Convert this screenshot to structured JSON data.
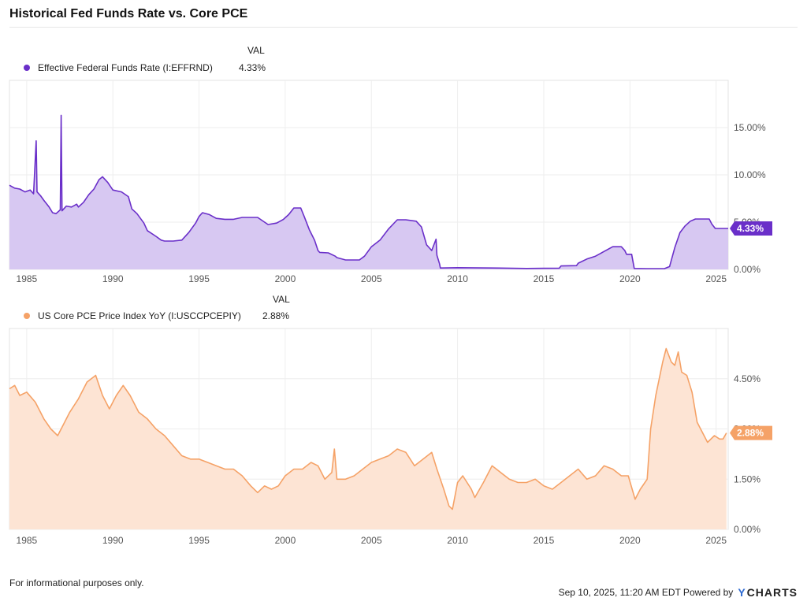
{
  "title": "Historical Fed Funds Rate vs. Core PCE",
  "val_header": "VAL",
  "footer": {
    "note": "For informational purposes only.",
    "timestamp": "Sep 10, 2025, 11:20 AM EDT Powered by",
    "brand": "CHARTS",
    "brand_mark": "Y"
  },
  "colors": {
    "fed": "#6a2fc9",
    "fed_fill": "#d7c8f2",
    "pce": "#f5a267",
    "pce_fill": "#fde4d4",
    "grid": "#eeeeee"
  },
  "chart_data": [
    {
      "type": "area",
      "series": [
        {
          "name": "Effective Federal Funds Rate (I:EFFRND)",
          "value_label": "4.33%",
          "points": [
            [
              1984.0,
              8.9
            ],
            [
              1984.3,
              8.6
            ],
            [
              1984.6,
              8.5
            ],
            [
              1984.9,
              8.2
            ],
            [
              1985.2,
              8.4
            ],
            [
              1985.4,
              8.0
            ],
            [
              1985.55,
              13.6
            ],
            [
              1985.6,
              8.2
            ],
            [
              1985.8,
              7.8
            ],
            [
              1986.0,
              7.3
            ],
            [
              1986.3,
              6.6
            ],
            [
              1986.5,
              6.0
            ],
            [
              1986.7,
              5.9
            ],
            [
              1986.95,
              6.3
            ],
            [
              1987.0,
              16.3
            ],
            [
              1987.05,
              6.2
            ],
            [
              1987.3,
              6.7
            ],
            [
              1987.6,
              6.6
            ],
            [
              1987.9,
              6.9
            ],
            [
              1988.0,
              6.6
            ],
            [
              1988.3,
              7.1
            ],
            [
              1988.6,
              7.9
            ],
            [
              1988.9,
              8.5
            ],
            [
              1989.2,
              9.5
            ],
            [
              1989.4,
              9.8
            ],
            [
              1989.7,
              9.2
            ],
            [
              1990.0,
              8.4
            ],
            [
              1990.5,
              8.2
            ],
            [
              1990.9,
              7.7
            ],
            [
              1991.1,
              6.4
            ],
            [
              1991.4,
              5.9
            ],
            [
              1991.8,
              4.9
            ],
            [
              1992.0,
              4.1
            ],
            [
              1992.5,
              3.5
            ],
            [
              1992.8,
              3.1
            ],
            [
              1993.0,
              3.0
            ],
            [
              1993.5,
              3.0
            ],
            [
              1994.0,
              3.1
            ],
            [
              1994.4,
              3.9
            ],
            [
              1994.8,
              4.9
            ],
            [
              1995.0,
              5.6
            ],
            [
              1995.2,
              6.0
            ],
            [
              1995.6,
              5.8
            ],
            [
              1996.0,
              5.4
            ],
            [
              1996.5,
              5.3
            ],
            [
              1997.0,
              5.3
            ],
            [
              1997.5,
              5.5
            ],
            [
              1998.0,
              5.5
            ],
            [
              1998.4,
              5.5
            ],
            [
              1998.8,
              5.0
            ],
            [
              1999.0,
              4.75
            ],
            [
              1999.5,
              4.9
            ],
            [
              1999.9,
              5.3
            ],
            [
              2000.2,
              5.8
            ],
            [
              2000.5,
              6.5
            ],
            [
              2000.9,
              6.5
            ],
            [
              2001.1,
              5.6
            ],
            [
              2001.4,
              4.2
            ],
            [
              2001.7,
              3.1
            ],
            [
              2001.9,
              2.0
            ],
            [
              2002.0,
              1.8
            ],
            [
              2002.5,
              1.75
            ],
            [
              2002.9,
              1.4
            ],
            [
              2003.0,
              1.25
            ],
            [
              2003.5,
              1.0
            ],
            [
              2004.0,
              1.0
            ],
            [
              2004.3,
              1.0
            ],
            [
              2004.6,
              1.4
            ],
            [
              2005.0,
              2.4
            ],
            [
              2005.5,
              3.1
            ],
            [
              2006.0,
              4.3
            ],
            [
              2006.5,
              5.25
            ],
            [
              2007.0,
              5.25
            ],
            [
              2007.6,
              5.1
            ],
            [
              2007.9,
              4.5
            ],
            [
              2008.2,
              2.6
            ],
            [
              2008.5,
              2.0
            ],
            [
              2008.75,
              3.2
            ],
            [
              2008.8,
              1.5
            ],
            [
              2008.95,
              0.6
            ],
            [
              2009.0,
              0.15
            ],
            [
              2010.0,
              0.18
            ],
            [
              2012.0,
              0.15
            ],
            [
              2014.0,
              0.1
            ],
            [
              2015.0,
              0.12
            ],
            [
              2015.9,
              0.13
            ],
            [
              2016.0,
              0.37
            ],
            [
              2016.9,
              0.4
            ],
            [
              2017.0,
              0.66
            ],
            [
              2017.5,
              1.1
            ],
            [
              2018.0,
              1.4
            ],
            [
              2018.5,
              1.9
            ],
            [
              2019.0,
              2.4
            ],
            [
              2019.5,
              2.4
            ],
            [
              2019.7,
              2.0
            ],
            [
              2019.8,
              1.6
            ],
            [
              2020.1,
              1.6
            ],
            [
              2020.25,
              0.1
            ],
            [
              2021.0,
              0.08
            ],
            [
              2022.0,
              0.08
            ],
            [
              2022.3,
              0.3
            ],
            [
              2022.6,
              2.3
            ],
            [
              2022.9,
              3.9
            ],
            [
              2023.2,
              4.6
            ],
            [
              2023.5,
              5.1
            ],
            [
              2023.8,
              5.33
            ],
            [
              2024.6,
              5.33
            ],
            [
              2024.75,
              4.8
            ],
            [
              2024.95,
              4.33
            ],
            [
              2025.7,
              4.33
            ]
          ]
        }
      ],
      "y_ticks": [
        "0.00%",
        "5.00%",
        "10.00%",
        "15.00%"
      ],
      "x_ticks": [
        "1985",
        "1990",
        "1995",
        "2000",
        "2005",
        "2010",
        "2015",
        "2020",
        "2025"
      ],
      "xlim": [
        1984.0,
        2025.7
      ],
      "ylim": [
        0,
        20
      ],
      "grid": true,
      "legend": "top-left"
    },
    {
      "type": "area",
      "series": [
        {
          "name": "US Core PCE Price Index YoY (I:USCCPCEPIY)",
          "value_label": "2.88%",
          "points": [
            [
              1984.0,
              4.2
            ],
            [
              1984.3,
              4.3
            ],
            [
              1984.6,
              4.0
            ],
            [
              1985.0,
              4.1
            ],
            [
              1985.5,
              3.8
            ],
            [
              1986.0,
              3.3
            ],
            [
              1986.4,
              3.0
            ],
            [
              1986.8,
              2.8
            ],
            [
              1987.0,
              3.0
            ],
            [
              1987.5,
              3.5
            ],
            [
              1988.0,
              3.9
            ],
            [
              1988.5,
              4.4
            ],
            [
              1989.0,
              4.6
            ],
            [
              1989.4,
              4.0
            ],
            [
              1989.8,
              3.6
            ],
            [
              1990.2,
              4.0
            ],
            [
              1990.6,
              4.3
            ],
            [
              1991.0,
              4.0
            ],
            [
              1991.5,
              3.5
            ],
            [
              1992.0,
              3.3
            ],
            [
              1992.5,
              3.0
            ],
            [
              1993.0,
              2.8
            ],
            [
              1993.5,
              2.5
            ],
            [
              1994.0,
              2.2
            ],
            [
              1994.5,
              2.1
            ],
            [
              1995.0,
              2.1
            ],
            [
              1995.5,
              2.0
            ],
            [
              1996.0,
              1.9
            ],
            [
              1996.5,
              1.8
            ],
            [
              1997.0,
              1.8
            ],
            [
              1997.5,
              1.6
            ],
            [
              1998.0,
              1.3
            ],
            [
              1998.4,
              1.1
            ],
            [
              1998.8,
              1.3
            ],
            [
              1999.2,
              1.2
            ],
            [
              1999.6,
              1.3
            ],
            [
              2000.0,
              1.6
            ],
            [
              2000.5,
              1.8
            ],
            [
              2001.0,
              1.8
            ],
            [
              2001.5,
              2.0
            ],
            [
              2001.9,
              1.9
            ],
            [
              2002.3,
              1.5
            ],
            [
              2002.7,
              1.7
            ],
            [
              2002.85,
              2.4
            ],
            [
              2003.0,
              1.5
            ],
            [
              2003.5,
              1.5
            ],
            [
              2004.0,
              1.6
            ],
            [
              2004.5,
              1.8
            ],
            [
              2005.0,
              2.0
            ],
            [
              2005.5,
              2.1
            ],
            [
              2006.0,
              2.2
            ],
            [
              2006.5,
              2.4
            ],
            [
              2007.0,
              2.3
            ],
            [
              2007.5,
              1.9
            ],
            [
              2008.0,
              2.1
            ],
            [
              2008.5,
              2.3
            ],
            [
              2008.8,
              1.8
            ],
            [
              2009.2,
              1.2
            ],
            [
              2009.5,
              0.7
            ],
            [
              2009.7,
              0.6
            ],
            [
              2010.0,
              1.4
            ],
            [
              2010.3,
              1.6
            ],
            [
              2010.8,
              1.2
            ],
            [
              2011.0,
              0.95
            ],
            [
              2011.5,
              1.4
            ],
            [
              2012.0,
              1.9
            ],
            [
              2012.5,
              1.7
            ],
            [
              2013.0,
              1.5
            ],
            [
              2013.5,
              1.4
            ],
            [
              2014.0,
              1.4
            ],
            [
              2014.5,
              1.5
            ],
            [
              2015.0,
              1.3
            ],
            [
              2015.5,
              1.2
            ],
            [
              2016.0,
              1.4
            ],
            [
              2016.5,
              1.6
            ],
            [
              2017.0,
              1.8
            ],
            [
              2017.5,
              1.5
            ],
            [
              2018.0,
              1.6
            ],
            [
              2018.5,
              1.9
            ],
            [
              2019.0,
              1.8
            ],
            [
              2019.5,
              1.6
            ],
            [
              2019.9,
              1.6
            ],
            [
              2020.3,
              0.9
            ],
            [
              2020.6,
              1.2
            ],
            [
              2021.0,
              1.5
            ],
            [
              2021.2,
              3.0
            ],
            [
              2021.5,
              4.0
            ],
            [
              2021.9,
              5.0
            ],
            [
              2022.1,
              5.4
            ],
            [
              2022.4,
              5.0
            ],
            [
              2022.6,
              4.9
            ],
            [
              2022.8,
              5.3
            ],
            [
              2023.0,
              4.7
            ],
            [
              2023.3,
              4.6
            ],
            [
              2023.6,
              4.1
            ],
            [
              2023.9,
              3.2
            ],
            [
              2024.2,
              2.9
            ],
            [
              2024.5,
              2.6
            ],
            [
              2024.9,
              2.8
            ],
            [
              2025.2,
              2.7
            ],
            [
              2025.4,
              2.7
            ],
            [
              2025.6,
              2.88
            ]
          ]
        }
      ],
      "y_ticks": [
        "0.00%",
        "1.50%",
        "3.00%",
        "4.50%"
      ],
      "x_ticks": [
        "1985",
        "1990",
        "1995",
        "2000",
        "2005",
        "2010",
        "2015",
        "2020",
        "2025"
      ],
      "xlim": [
        1984.0,
        2025.7
      ],
      "ylim": [
        0,
        6
      ],
      "grid": true,
      "legend": "top-left"
    }
  ]
}
